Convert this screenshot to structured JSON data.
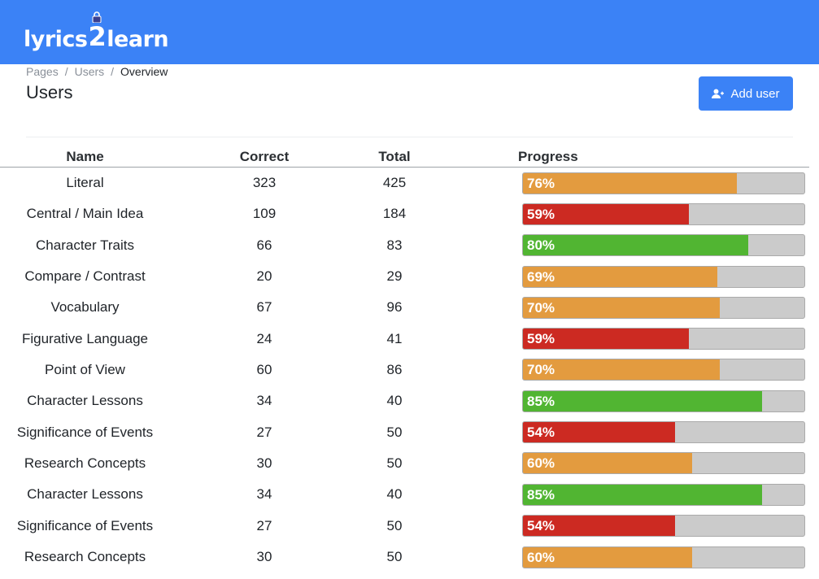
{
  "app": {
    "logo_left": "lyrics",
    "logo_two": "2",
    "logo_right": "learn"
  },
  "breadcrumb": [
    "Pages",
    "Users",
    "Overview"
  ],
  "page_title": "Users",
  "add_user_label": "Add user",
  "colors": {
    "header": "#3b82f6",
    "orange": "#e39b3f",
    "red": "#cc2a22",
    "green": "#51b532",
    "track": "#cbcbcb"
  },
  "table": {
    "columns": [
      "Name",
      "Correct",
      "Total",
      "Progress"
    ],
    "rows": [
      {
        "name": "Literal",
        "correct": "323",
        "total": "425",
        "pct": "76%",
        "value": 0.76,
        "color": "orange"
      },
      {
        "name": "Central / Main Idea",
        "correct": "109",
        "total": "184",
        "pct": "59%",
        "value": 0.59,
        "color": "red"
      },
      {
        "name": "Character Traits",
        "correct": "66",
        "total": "83",
        "pct": "80%",
        "value": 0.8,
        "color": "green"
      },
      {
        "name": "Compare / Contrast",
        "correct": "20",
        "total": "29",
        "pct": "69%",
        "value": 0.69,
        "color": "orange"
      },
      {
        "name": "Vocabulary",
        "correct": "67",
        "total": "96",
        "pct": "70%",
        "value": 0.7,
        "color": "orange"
      },
      {
        "name": "Figurative Language",
        "correct": "24",
        "total": "41",
        "pct": "59%",
        "value": 0.59,
        "color": "red"
      },
      {
        "name": "Point of View",
        "correct": "60",
        "total": "86",
        "pct": "70%",
        "value": 0.7,
        "color": "orange"
      },
      {
        "name": "Character Lessons",
        "correct": "34",
        "total": "40",
        "pct": "85%",
        "value": 0.85,
        "color": "green"
      },
      {
        "name": "Significance of Events",
        "correct": "27",
        "total": "50",
        "pct": "54%",
        "value": 0.54,
        "color": "red"
      },
      {
        "name": "Research Concepts",
        "correct": "30",
        "total": "50",
        "pct": "60%",
        "value": 0.6,
        "color": "orange"
      },
      {
        "name": "Character Lessons",
        "correct": "34",
        "total": "40",
        "pct": "85%",
        "value": 0.85,
        "color": "green"
      },
      {
        "name": "Significance of Events",
        "correct": "27",
        "total": "50",
        "pct": "54%",
        "value": 0.54,
        "color": "red"
      },
      {
        "name": "Research Concepts",
        "correct": "30",
        "total": "50",
        "pct": "60%",
        "value": 0.6,
        "color": "orange"
      }
    ]
  }
}
